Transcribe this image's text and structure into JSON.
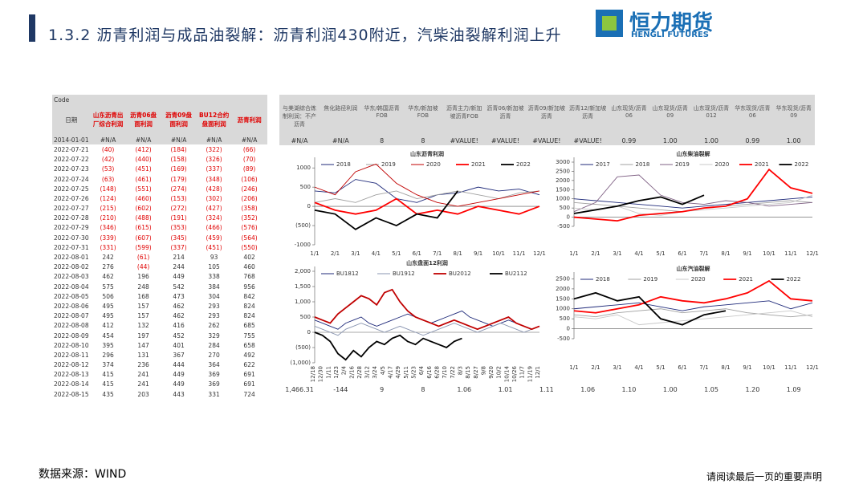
{
  "header": {
    "title": "1.3.2 沥青利润与成品油裂解：沥青利润430附近，汽柴油裂解利润上升",
    "logo_name": "恒力期货",
    "logo_en": "HENGLI FUTURES"
  },
  "table": {
    "code_label": "Code",
    "date_label": "日期",
    "columns": [
      "山东沥青出厂综合利润",
      "沥青06盘面利润",
      "沥青09盘面利润",
      "BU12合约盘面利润",
      "沥青利润"
    ],
    "code_row": [
      "2014-01-01",
      "#N/A",
      "#N/A",
      "#N/A",
      "#N/A",
      "#N/A"
    ],
    "rows": [
      [
        "2022-07-21",
        "(40)",
        "(412)",
        "(184)",
        "(322)",
        "(66)"
      ],
      [
        "2022-07-22",
        "(42)",
        "(440)",
        "(158)",
        "(326)",
        "(70)"
      ],
      [
        "2022-07-23",
        "(53)",
        "(451)",
        "(169)",
        "(337)",
        "(89)"
      ],
      [
        "2022-07-24",
        "(63)",
        "(461)",
        "(179)",
        "(348)",
        "(106)"
      ],
      [
        "2022-07-25",
        "(148)",
        "(551)",
        "(274)",
        "(428)",
        "(246)"
      ],
      [
        "2022-07-26",
        "(124)",
        "(460)",
        "(153)",
        "(302)",
        "(206)"
      ],
      [
        "2022-07-27",
        "(215)",
        "(602)",
        "(272)",
        "(427)",
        "(358)"
      ],
      [
        "2022-07-28",
        "(210)",
        "(488)",
        "(191)",
        "(324)",
        "(352)"
      ],
      [
        "2022-07-29",
        "(346)",
        "(615)",
        "(353)",
        "(466)",
        "(576)"
      ],
      [
        "2022-07-30",
        "(339)",
        "(607)",
        "(345)",
        "(459)",
        "(564)"
      ],
      [
        "2022-07-31",
        "(331)",
        "(599)",
        "(337)",
        "(451)",
        "(550)"
      ],
      [
        "2022-08-01",
        "242",
        "(61)",
        "214",
        "93",
        "402"
      ],
      [
        "2022-08-02",
        "276",
        "(44)",
        "244",
        "105",
        "460"
      ],
      [
        "2022-08-03",
        "462",
        "196",
        "449",
        "338",
        "768"
      ],
      [
        "2022-08-04",
        "575",
        "248",
        "542",
        "384",
        "956"
      ],
      [
        "2022-08-05",
        "506",
        "168",
        "473",
        "304",
        "842"
      ],
      [
        "2022-08-06",
        "495",
        "157",
        "462",
        "293",
        "824"
      ],
      [
        "2022-08-07",
        "495",
        "157",
        "462",
        "293",
        "824"
      ],
      [
        "2022-08-08",
        "412",
        "132",
        "416",
        "262",
        "685"
      ],
      [
        "2022-08-09",
        "454",
        "197",
        "452",
        "329",
        "755"
      ],
      [
        "2022-08-10",
        "395",
        "147",
        "401",
        "284",
        "658"
      ],
      [
        "2022-08-11",
        "296",
        "131",
        "367",
        "270",
        "492"
      ],
      [
        "2022-08-12",
        "374",
        "236",
        "444",
        "364",
        "622"
      ],
      [
        "2022-08-13",
        "415",
        "241",
        "449",
        "369",
        "691"
      ],
      [
        "2022-08-14",
        "415",
        "241",
        "449",
        "369",
        "691"
      ],
      [
        "2022-08-15",
        "435",
        "203",
        "443",
        "331",
        "724"
      ]
    ]
  },
  "extra": {
    "columns": [
      "与美湖综合炼制利润：不产沥青",
      "焦化路径利润",
      "华东/韩国沥青FOB",
      "华东/新加坡FOB",
      "沥青主力/新加坡沥青FOB",
      "沥青06/新加坡沥青",
      "沥青09/新加坡沥青",
      "沥青12/新加坡沥青",
      "山东现货/沥青06",
      "山东现货/沥青09",
      "山东现货/沥青012",
      "华东现货/沥青06",
      "华东现货/沥青09"
    ],
    "code_values": [
      "#N/A",
      "#N/A",
      "8",
      "8",
      "#VALUE!",
      "#VALUE!",
      "#VALUE!",
      "#VALUE!",
      "0.99",
      "1.00",
      "1.00",
      "0.99",
      "1.00"
    ],
    "last_values": [
      "1,466.31",
      "-144",
      "9",
      "8",
      "1.06",
      "1.01",
      "1.11",
      "1.06",
      "1.10",
      "1.00",
      "1.05",
      "1.20",
      "1.09"
    ]
  },
  "charts": [
    {
      "type": "line",
      "title": "山东沥青利润",
      "categories": [
        "1/1",
        "2/1",
        "3/1",
        "4/1",
        "5/1",
        "6/1",
        "7/1",
        "8/1",
        "9/1",
        "10/1",
        "11/1",
        "12/1"
      ],
      "ylim": [
        -1000,
        1150
      ],
      "yticks": [
        1000,
        500,
        0,
        {
          "value": -500,
          "label": "(500)"
        },
        -1000
      ],
      "series": [
        {
          "name": "2018",
          "color": "#1f2a7a",
          "values": [
            400,
            350,
            700,
            600,
            200,
            100,
            300,
            350,
            500,
            400,
            450,
            300
          ]
        },
        {
          "name": "2019",
          "color": "#a0a0a0",
          "values": [
            100,
            200,
            100,
            300,
            400,
            200,
            300,
            400,
            300,
            200,
            350,
            400
          ]
        },
        {
          "name": "2020",
          "color": "#c00000",
          "values": [
            500,
            300,
            900,
            1100,
            600,
            300,
            100,
            0,
            100,
            200,
            300,
            400
          ]
        },
        {
          "name": "2021",
          "color": "#ff0000",
          "values": [
            100,
            -100,
            -200,
            -100,
            200,
            -200,
            -100,
            -200,
            0,
            -100,
            -200,
            0
          ]
        },
        {
          "name": "2022",
          "color": "#000000",
          "values": [
            -100,
            -200,
            -600,
            -300,
            -500,
            -200,
            -300,
            400,
            null,
            null,
            null,
            null
          ]
        }
      ]
    },
    {
      "type": "line",
      "title": "山东柴油裂解",
      "categories": [
        "1/1",
        "2/1",
        "3/1",
        "4/1",
        "5/1",
        "6/1",
        "7/1",
        "8/1",
        "9/1",
        "10/1",
        "11/1",
        "12/1"
      ],
      "ylim": [
        -500,
        3000
      ],
      "yticks": [
        3000,
        2500,
        2000,
        1500,
        1000,
        500,
        0,
        -500
      ],
      "series": [
        {
          "name": "2017",
          "color": "#1f2a7a",
          "values": [
            1000,
            900,
            800,
            700,
            600,
            500,
            600,
            700,
            800,
            900,
            1000,
            1100
          ]
        },
        {
          "name": "2018",
          "color": "#a0a0a0",
          "values": [
            800,
            700,
            600,
            500,
            400,
            300,
            500,
            600,
            700,
            800,
            900,
            800
          ]
        },
        {
          "name": "2019",
          "color": "#7f6084",
          "values": [
            300,
            800,
            2200,
            2300,
            1200,
            800,
            700,
            900,
            800,
            600,
            700,
            800
          ]
        },
        {
          "name": "2020",
          "color": "#c8c8c8",
          "values": [
            500,
            400,
            600,
            200,
            100,
            300,
            400,
            500,
            600,
            700,
            800,
            1200
          ]
        },
        {
          "name": "2021",
          "color": "#ff0000",
          "values": [
            0,
            -100,
            -200,
            100,
            200,
            300,
            500,
            600,
            1000,
            2600,
            1600,
            1300
          ]
        },
        {
          "name": "2022",
          "color": "#000000",
          "values": [
            200,
            400,
            600,
            900,
            1100,
            700,
            1200,
            null,
            null,
            null,
            null,
            null
          ]
        }
      ]
    },
    {
      "type": "line",
      "title": "山东盘面12利润",
      "rotate": true,
      "categories": [
        "12/18",
        "12/30",
        "1/11",
        "1/23",
        "2/4",
        "2/16",
        "2/28",
        "3/12",
        "3/24",
        "4/5",
        "4/17",
        "4/29",
        "5/11",
        "5/23",
        "6/4",
        "6/16",
        "6/28",
        "7/10",
        "7/22",
        "8/3",
        "8/15",
        "8/27",
        "9/8",
        "9/20",
        "10/2",
        "10/14",
        "10/26",
        "11/7",
        "11/19",
        "12/1"
      ],
      "ylim": [
        -1000,
        2000
      ],
      "yticks": [
        {
          "value": 2000,
          "label": "2,000"
        },
        {
          "value": 1500,
          "label": "1,500"
        },
        {
          "value": 1000,
          "label": "1,000"
        },
        500,
        0,
        {
          "value": -500,
          "label": "(500)"
        },
        {
          "value": -1000,
          "label": "(1,000)"
        }
      ],
      "series": [
        {
          "name": "BU1812",
          "color": "#1f2a7a",
          "values": [
            400,
            300,
            200,
            100,
            300,
            400,
            500,
            300,
            200,
            300,
            400,
            500,
            600,
            500,
            400,
            300,
            400,
            500,
            600,
            700,
            500,
            400,
            300,
            200,
            300,
            400,
            300,
            200,
            100,
            200
          ]
        },
        {
          "name": "BU1912",
          "color": "#8894b0",
          "values": [
            200,
            100,
            0,
            -100,
            100,
            200,
            300,
            200,
            100,
            0,
            100,
            200,
            100,
            0,
            -100,
            0,
            100,
            200,
            300,
            200,
            100,
            0,
            100,
            200,
            300,
            200,
            100,
            0,
            100,
            200
          ]
        },
        {
          "name": "BU2012",
          "color": "#c00000",
          "values": [
            500,
            400,
            300,
            600,
            800,
            1000,
            1200,
            1100,
            900,
            1300,
            1400,
            1000,
            700,
            500,
            400,
            300,
            200,
            300,
            400,
            300,
            200,
            100,
            200,
            300,
            400,
            500,
            300,
            200,
            100,
            200
          ]
        },
        {
          "name": "BU2112",
          "color": "#000000",
          "values": [
            0,
            -100,
            -300,
            -700,
            -900,
            -600,
            -800,
            -500,
            -300,
            -400,
            -200,
            -100,
            -300,
            -400,
            -200,
            -300,
            -400,
            -500,
            -300,
            -200,
            null,
            null,
            null,
            null,
            null,
            null,
            null,
            null,
            null,
            null
          ]
        }
      ]
    },
    {
      "type": "line",
      "title": "山东汽油裂解",
      "categories": [
        "1/1",
        "2/1",
        "3/1",
        "4/1",
        "5/1",
        "6/1",
        "7/1",
        "8/1",
        "9/1",
        "10/1",
        "11/1",
        "12/1"
      ],
      "ylim": [
        -500,
        2600
      ],
      "yticks": [
        2500,
        2000,
        1500,
        1000,
        500,
        0,
        -500
      ],
      "series": [
        {
          "name": "2018",
          "color": "#1f2a7a",
          "values": [
            1000,
            1100,
            1200,
            1300,
            1100,
            900,
            1100,
            1200,
            1300,
            1400,
            1000,
            1300
          ]
        },
        {
          "name": "2019",
          "color": "#a0a0a0",
          "values": [
            700,
            600,
            800,
            900,
            1000,
            800,
            900,
            1000,
            800,
            700,
            600,
            700
          ]
        },
        {
          "name": "2020",
          "color": "#c8c8c8",
          "values": [
            600,
            500,
            700,
            200,
            300,
            400,
            500,
            600,
            700,
            800,
            900,
            600
          ]
        },
        {
          "name": "2021",
          "color": "#ff0000",
          "values": [
            900,
            800,
            1000,
            1200,
            1600,
            1400,
            1300,
            1500,
            1800,
            2400,
            1500,
            1400
          ]
        },
        {
          "name": "2022",
          "color": "#000000",
          "values": [
            1500,
            1800,
            1400,
            1600,
            500,
            200,
            700,
            900,
            null,
            null,
            null,
            null
          ]
        }
      ]
    }
  ],
  "footer": {
    "source": "数据来源：WIND",
    "disclaimer": "请阅读最后一页的重要声明"
  }
}
